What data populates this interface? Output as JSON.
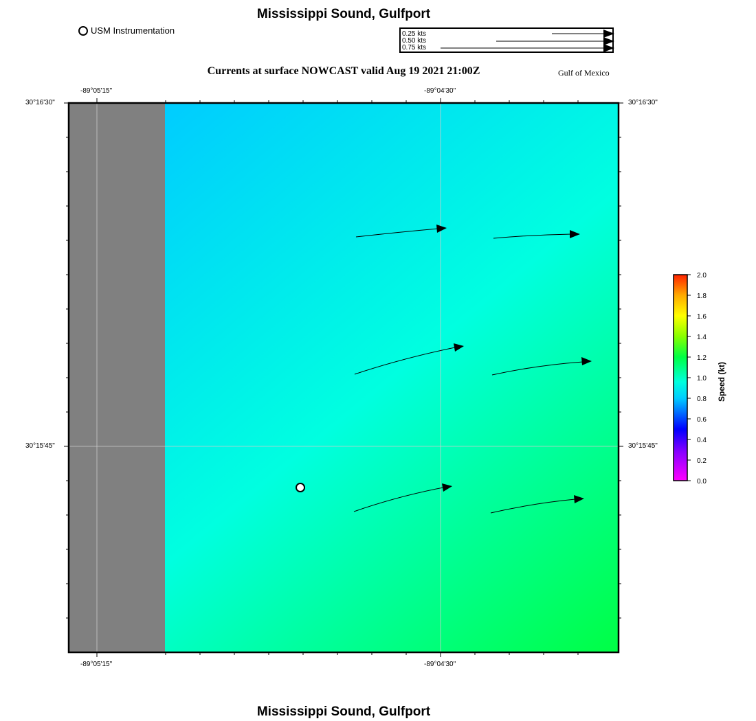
{
  "header": {
    "title": "Mississippi Sound, Gulfport",
    "subtitle": "Currents at surface NOWCAST valid Aug 19 2021 21:00Z",
    "region": "Gulf of Mexico"
  },
  "footer": {
    "title": "Mississippi Sound, Gulfport"
  },
  "legend": {
    "station_label": "USM Instrumentation"
  },
  "speed_key": {
    "entries": [
      {
        "label": "0.25 kts",
        "speed": 0.25
      },
      {
        "label": "0.50 kts",
        "speed": 0.5
      },
      {
        "label": "0.75 kts",
        "speed": 0.75
      }
    ]
  },
  "axes": {
    "lon_ticks": [
      "-89°05'15\"",
      "-89°04'30\""
    ],
    "lat_ticks": [
      "30°16'30\"",
      "30°15'45\""
    ]
  },
  "colorbar": {
    "label": "Speed (kt)",
    "ticks": [
      "0.0",
      "0.2",
      "0.4",
      "0.6",
      "0.8",
      "1.0",
      "1.2",
      "1.4",
      "1.6",
      "1.8",
      "2.0"
    ]
  },
  "colors": {
    "land": "#808080",
    "water_nw": "#00ccff",
    "water_mid": "#00ffe0",
    "water_se": "#00ff44"
  }
}
